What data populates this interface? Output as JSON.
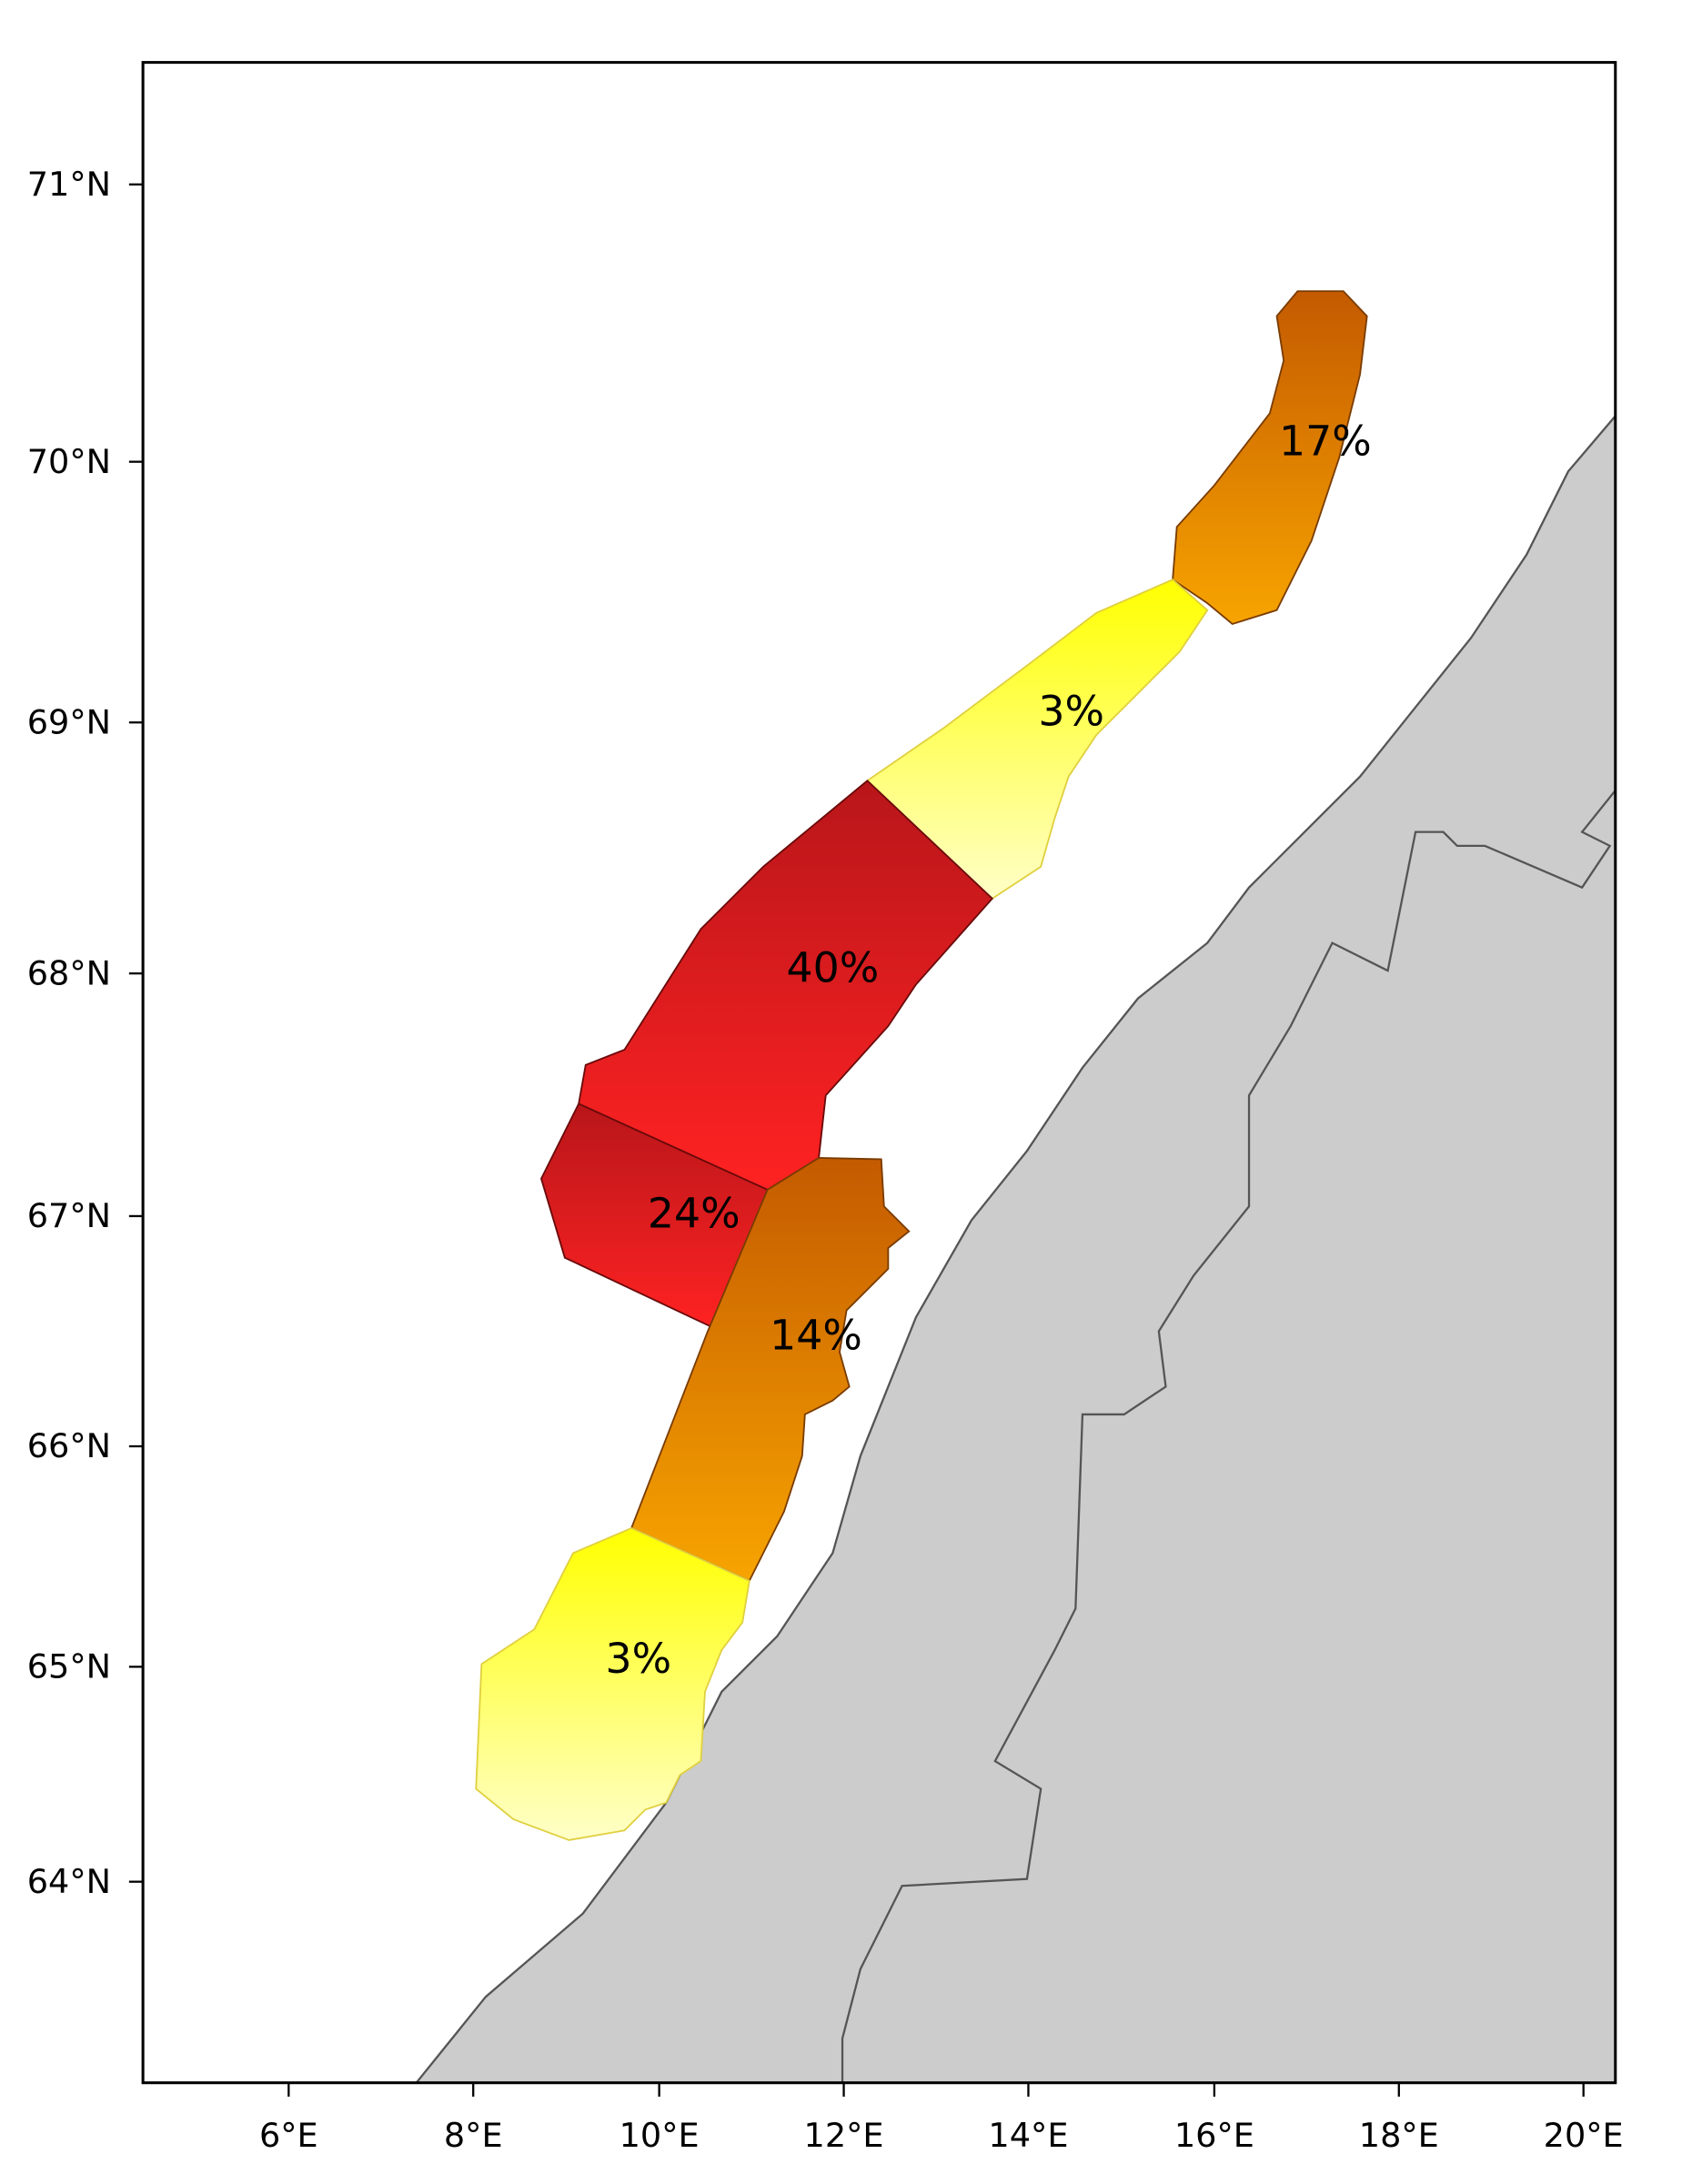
{
  "axes": {
    "xticks": [
      "6°E",
      "8°E",
      "10°E",
      "12°E",
      "14°E",
      "16°E",
      "18°E",
      "20°E"
    ],
    "yticks": [
      "71°N",
      "70°N",
      "69°N",
      "68°N",
      "67°N",
      "66°N",
      "65°N",
      "64°N"
    ]
  },
  "regions": [
    {
      "label": "17%"
    },
    {
      "label": "3%"
    },
    {
      "label": "40%"
    },
    {
      "label": "24%"
    },
    {
      "label": "14%"
    },
    {
      "label": "3%"
    }
  ]
}
